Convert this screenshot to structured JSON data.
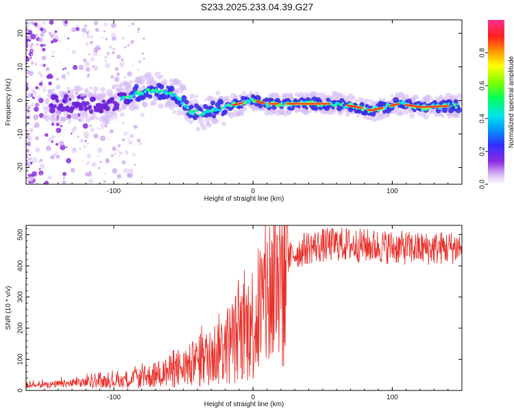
{
  "title": "S233.2025.233.04.39.G27",
  "chart_data": [
    {
      "type": "heatmap",
      "xlabel": "Height of straight line (km)",
      "ylabel": "Frequency (Hz)",
      "xlim": [
        -163,
        150
      ],
      "ylim": [
        -25,
        24
      ],
      "xticks": [
        -100,
        0,
        100
      ],
      "yticks": [
        -20,
        -10,
        0,
        10,
        20
      ],
      "ridge": {
        "x": [
          -163,
          -135,
          -120,
          -105,
          -95,
          -85,
          -75,
          -65,
          -55,
          -45,
          -38,
          -30,
          -20,
          -10,
          0,
          10,
          20,
          40,
          60,
          75,
          85,
          95,
          105,
          120,
          150
        ],
        "freq": [
          -1,
          -1,
          -1,
          -1.5,
          0,
          2,
          3,
          3,
          1,
          -3,
          -4,
          -3,
          -2,
          -1,
          0,
          -1,
          -1,
          -1,
          -1,
          -2,
          -3,
          -2,
          -1,
          -2,
          -1.5
        ]
      },
      "colorbar": {
        "label": "Normalized spectral amplitude",
        "range": [
          0,
          1
        ],
        "ticks": [
          "0.0",
          "0.2",
          "0.4",
          "0.6",
          "0.8"
        ]
      }
    },
    {
      "type": "line",
      "xlabel": "Height of straight line (km)",
      "ylabel": "SNR (10 * v/v)",
      "xlim": [
        -163,
        150
      ],
      "ylim": [
        0,
        530
      ],
      "xticks": [
        -100,
        0,
        100
      ],
      "yticks": [
        0,
        100,
        200,
        300,
        400,
        500
      ],
      "line_color": "#e8302a",
      "envelope": {
        "x": [
          -163,
          -140,
          -120,
          -100,
          -80,
          -60,
          -50,
          -40,
          -35,
          -30,
          -25,
          -20,
          -15,
          -10,
          -5,
          0,
          5,
          10,
          15,
          20,
          25,
          30,
          40,
          60,
          80,
          100,
          120,
          150
        ],
        "y": [
          15,
          20,
          25,
          30,
          40,
          60,
          70,
          90,
          100,
          110,
          130,
          140,
          160,
          180,
          200,
          220,
          260,
          300,
          340,
          390,
          420,
          440,
          460,
          470,
          465,
          460,
          455,
          460
        ]
      }
    }
  ]
}
